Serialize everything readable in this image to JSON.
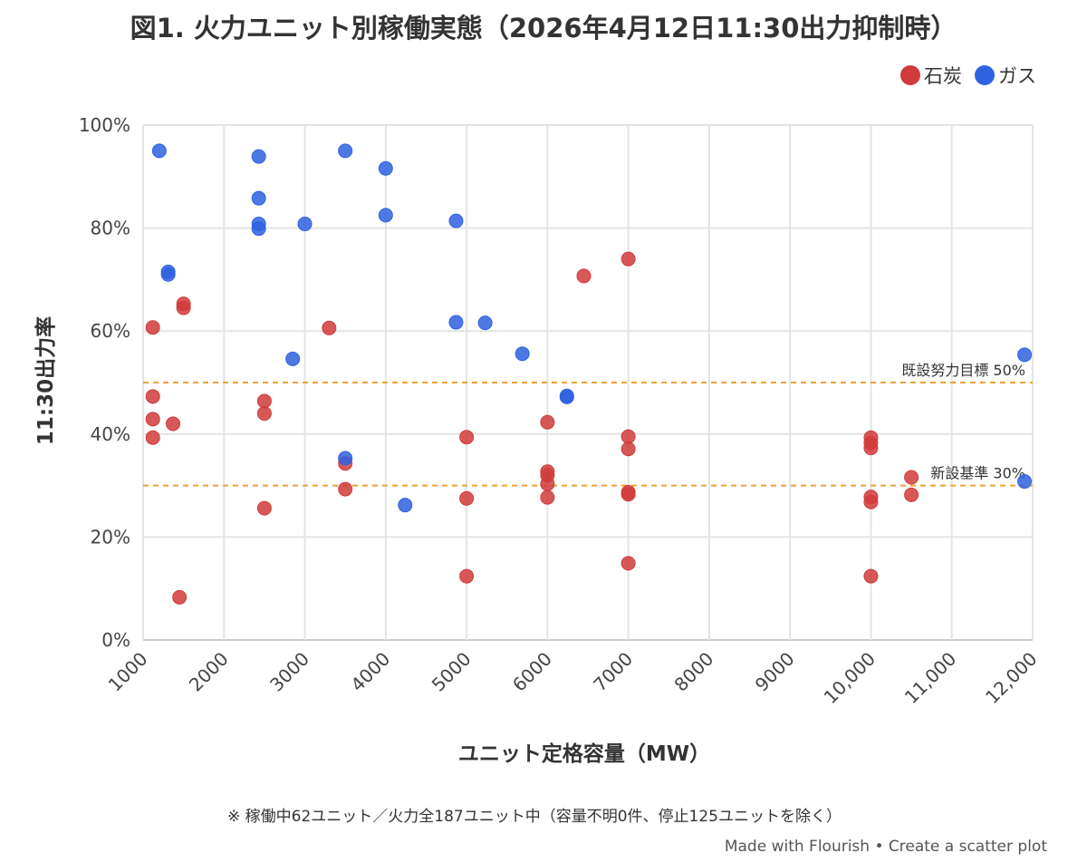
{
  "chart_data": {
    "type": "scatter",
    "title": "図1. 火力ユニット別稼働実態（2026年4月12日11:30出力抑制時）",
    "xlabel": "ユニット定格容量（MW）",
    "ylabel": "11:30出力率",
    "x_ticks": [
      1000,
      2000,
      3000,
      4000,
      5000,
      6000,
      7000,
      8000,
      9000,
      10000,
      11000,
      12000
    ],
    "x_tick_labels": [
      "1000",
      "2000",
      "3000",
      "4000",
      "5000",
      "6000",
      "7000",
      "8000",
      "9000",
      "10,000",
      "11,000",
      "12,000"
    ],
    "xlim": [
      1000,
      12000
    ],
    "y_ticks": [
      0,
      20,
      40,
      60,
      80,
      100
    ],
    "y_tick_labels": [
      "0%",
      "20%",
      "40%",
      "60%",
      "80%",
      "100%"
    ],
    "ylim": [
      0,
      100
    ],
    "grid": true,
    "legend_position": "top-right",
    "reference_lines": [
      {
        "y": 50,
        "label": "既設努力目標 50%",
        "color": "#f0a030"
      },
      {
        "y": 30,
        "label": "新設基準 30%",
        "color": "#f0a030"
      }
    ],
    "series": [
      {
        "name": "石炭",
        "color": "#d13b3b",
        "points": [
          [
            1120,
            60.7
          ],
          [
            1120,
            47.3
          ],
          [
            1120,
            42.9
          ],
          [
            1120,
            39.3
          ],
          [
            1370,
            42.0
          ],
          [
            1450,
            8.3
          ],
          [
            1500,
            65.3
          ],
          [
            1500,
            64.5
          ],
          [
            2500,
            46.4
          ],
          [
            2500,
            44.0
          ],
          [
            2500,
            25.6
          ],
          [
            3300,
            60.6
          ],
          [
            3500,
            34.3
          ],
          [
            3500,
            29.3
          ],
          [
            5000,
            39.4
          ],
          [
            5000,
            27.5
          ],
          [
            5000,
            12.4
          ],
          [
            6000,
            42.3
          ],
          [
            6000,
            32.7
          ],
          [
            6000,
            32.0
          ],
          [
            6000,
            30.3
          ],
          [
            6000,
            27.7
          ],
          [
            6450,
            70.7
          ],
          [
            7000,
            74.0
          ],
          [
            7000,
            39.5
          ],
          [
            7000,
            37.1
          ],
          [
            7000,
            28.7
          ],
          [
            7000,
            28.3
          ],
          [
            7000,
            14.9
          ],
          [
            10000,
            39.3
          ],
          [
            10000,
            38.3
          ],
          [
            10000,
            37.3
          ],
          [
            10000,
            27.8
          ],
          [
            10000,
            26.8
          ],
          [
            10000,
            12.4
          ],
          [
            10500,
            31.6
          ],
          [
            10500,
            28.2
          ]
        ]
      },
      {
        "name": "ガス",
        "color": "#2f62e0",
        "points": [
          [
            1200,
            95.0
          ],
          [
            1310,
            71.5
          ],
          [
            1310,
            71.0
          ],
          [
            2430,
            93.9
          ],
          [
            2430,
            85.8
          ],
          [
            2430,
            80.8
          ],
          [
            2430,
            79.9
          ],
          [
            2850,
            54.6
          ],
          [
            3000,
            80.8
          ],
          [
            3500,
            95.0
          ],
          [
            3500,
            35.3
          ],
          [
            4000,
            91.6
          ],
          [
            4000,
            82.5
          ],
          [
            4240,
            26.2
          ],
          [
            4870,
            81.4
          ],
          [
            4870,
            61.7
          ],
          [
            5230,
            61.6
          ],
          [
            5690,
            55.6
          ],
          [
            6240,
            47.4
          ],
          [
            6240,
            47.2
          ],
          [
            11900,
            55.4
          ],
          [
            11900,
            30.8
          ]
        ]
      }
    ],
    "footnote": "※ 稼働中62ユニット／火力全187ユニット中（容量不明0件、停止125ユニットを除く）",
    "credit": "Made with Flourish • Create a scatter plot"
  }
}
